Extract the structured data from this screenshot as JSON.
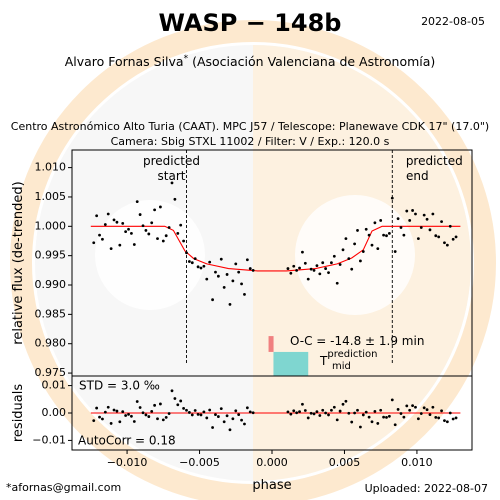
{
  "title": "WASP − 148b",
  "date": "2022-08-05",
  "observer": "Alvaro Fornas Silva",
  "observer_mark": "*",
  "organization": "(Asociación Valenciana de Astronomía)",
  "subtitle_line1": "Centro Astronómico Alto Turia (CAAT). MPC J57 / Telescope: Planewave CDK 17\" (17.0\")",
  "subtitle_line2": "Camera: Sbig STXL 11002 / Filter: V / Exp.: 120.0 s",
  "email": "*afornas@gmail.com",
  "uploaded": "Uploaded: 2022-08-07",
  "colors": {
    "points": "#000000",
    "model": "#ff0000",
    "oc_bar": "#f08080",
    "prediction_box": "#7fd6d0",
    "watermark_disk": "#eeeeee",
    "watermark_ring": "#fde9cf"
  },
  "chart_data": [
    {
      "type": "scatter",
      "panel": "lightcurve",
      "xlabel": "",
      "ylabel": "relative flux (de-trended)",
      "xlim": [
        -0.0138,
        0.0138
      ],
      "ylim": [
        0.9745,
        1.013
      ],
      "yticks": [
        0.975,
        0.98,
        0.985,
        0.99,
        0.995,
        1.0,
        1.005,
        1.01
      ],
      "ytick_labels": [
        "0.975",
        "0.980",
        "0.985",
        "0.990",
        "0.995",
        "1.000",
        "1.005",
        "1.010"
      ],
      "predicted_start": {
        "x": -0.0059,
        "label1": "predicted",
        "label2": "start"
      },
      "predicted_end": {
        "x": 0.0083,
        "label1": "predicted",
        "label2": "end"
      },
      "model": {
        "x": [
          -0.0125,
          -0.0074,
          -0.0068,
          -0.006,
          -0.0054,
          -0.0045,
          -0.003,
          -0.001,
          0.001,
          0.003,
          0.0045,
          0.0055,
          0.0063,
          0.0069,
          0.0076,
          0.013
        ],
        "y": [
          1.0,
          1.0,
          0.9993,
          0.9958,
          0.9945,
          0.9936,
          0.9928,
          0.9924,
          0.9924,
          0.9928,
          0.9936,
          0.9946,
          0.996,
          0.9992,
          1.0,
          1.0
        ]
      },
      "oc_text": "O-C = -14.8 ± 1.9 min",
      "oc_bar": {
        "x": -0.0001,
        "y_range": [
          0.9786,
          0.9813
        ]
      },
      "prediction_label": "T",
      "prediction_sup": "prediction",
      "prediction_sub": "mid",
      "prediction_box": {
        "x_range": [
          0.0001,
          0.0025
        ],
        "y_range": [
          0.9745,
          0.9786
        ]
      },
      "points": {
        "x": [
          -0.0123,
          -0.0121,
          -0.0119,
          -0.0117,
          -0.0115,
          -0.0113,
          -0.0111,
          -0.0109,
          -0.0107,
          -0.0105,
          -0.0103,
          -0.0101,
          -0.0099,
          -0.0097,
          -0.0095,
          -0.0093,
          -0.0091,
          -0.0089,
          -0.0087,
          -0.0085,
          -0.0083,
          -0.0081,
          -0.0079,
          -0.0077,
          -0.0075,
          -0.0073,
          -0.0071,
          -0.0069,
          -0.0067,
          -0.0065,
          -0.0063,
          -0.0061,
          -0.0059,
          -0.0057,
          -0.0055,
          -0.0053,
          -0.0051,
          -0.0049,
          -0.0047,
          -0.0045,
          -0.0043,
          -0.0041,
          -0.0039,
          -0.0037,
          -0.0035,
          -0.0033,
          -0.0031,
          -0.0029,
          -0.0027,
          -0.0025,
          -0.0023,
          -0.0021,
          -0.0019,
          -0.0017,
          -0.0015,
          -0.0013,
          0.0011,
          0.0013,
          0.0015,
          0.0017,
          0.0019,
          0.0021,
          0.0023,
          0.0025,
          0.0027,
          0.0029,
          0.0031,
          0.0033,
          0.0035,
          0.0037,
          0.0039,
          0.0041,
          0.0043,
          0.0045,
          0.0047,
          0.0049,
          0.0051,
          0.0053,
          0.0055,
          0.0057,
          0.0059,
          0.0061,
          0.0063,
          0.0065,
          0.0067,
          0.0069,
          0.0071,
          0.0073,
          0.0075,
          0.0077,
          0.0079,
          0.0081,
          0.0083,
          0.0085,
          0.0087,
          0.0089,
          0.0091,
          0.0093,
          0.0095,
          0.0097,
          0.0099,
          0.0101,
          0.0103,
          0.0105,
          0.0107,
          0.0109,
          0.0111,
          0.0113,
          0.0115,
          0.0117,
          0.0119,
          0.0121,
          0.0123,
          0.0125,
          0.0127
        ],
        "y": [
          0.9972,
          1.0018,
          0.9985,
          0.9978,
          1.0003,
          1.0021,
          0.9962,
          1.0011,
          1.0007,
          0.9968,
          1.0005,
          0.9991,
          0.9995,
          0.9988,
          0.9969,
          1.0042,
          1.002,
          1.0001,
          0.9993,
          0.9987,
          1.0006,
          1.0028,
          0.9979,
          1.0033,
          0.9975,
          0.9984,
          0.9998,
          1.0074,
          1.0046,
          0.9988,
          1.0002,
          0.9975,
          0.9955,
          0.994,
          0.9938,
          0.9945,
          0.9931,
          0.9929,
          0.9932,
          0.991,
          0.9939,
          0.9875,
          0.9922,
          0.9915,
          0.9944,
          0.9896,
          0.9918,
          0.9867,
          0.9907,
          0.9936,
          0.9922,
          0.9902,
          0.9884,
          0.9943,
          0.9928,
          0.9925,
          0.9928,
          0.992,
          0.9932,
          0.9925,
          0.9929,
          0.9956,
          0.9937,
          0.991,
          0.9927,
          0.9925,
          0.9933,
          0.9919,
          0.9938,
          0.9928,
          0.9921,
          0.9938,
          0.9949,
          0.9903,
          0.9935,
          0.996,
          0.9979,
          0.9945,
          0.9927,
          0.997,
          0.9993,
          0.9941,
          0.9957,
          0.9995,
          0.9985,
          0.9968,
          1.0006,
          0.9962,
          1.001,
          0.9985,
          0.9984,
          0.9988,
          1.0048,
          0.9957,
          1.0013,
          0.9998,
          0.9985,
          1.0026,
          1.001,
          1.0027,
          1.0021,
          0.9979,
          0.9998,
          1.0019,
          1.0012,
          0.9994,
          1.0021,
          0.9984,
          0.9982,
          1.0008,
          0.9972,
          0.9968,
          1.0,
          0.9978,
          0.9982
        ]
      }
    },
    {
      "type": "scatter",
      "panel": "residuals",
      "xlabel": "phase",
      "ylabel": "residuals",
      "xlim": [
        -0.0138,
        0.0138
      ],
      "ylim": [
        -0.0135,
        0.0135
      ],
      "xticks": [
        -0.01,
        -0.005,
        0.0,
        0.005,
        0.01
      ],
      "xtick_labels": [
        "−0.010",
        "−0.005",
        "0.000",
        "0.005",
        "0.010"
      ],
      "yticks": [
        -0.01,
        0.0,
        0.01
      ],
      "ytick_labels": [
        "−0.01",
        "0.00",
        "0.01"
      ],
      "std_text": "STD = 3.0 ‰",
      "autocorr_text": "AutoCorr = 0.18",
      "zero_line": 0.0,
      "points": {
        "x": [
          -0.0123,
          -0.0121,
          -0.0119,
          -0.0117,
          -0.0115,
          -0.0113,
          -0.0111,
          -0.0109,
          -0.0107,
          -0.0105,
          -0.0103,
          -0.0101,
          -0.0099,
          -0.0097,
          -0.0095,
          -0.0093,
          -0.0091,
          -0.0089,
          -0.0087,
          -0.0085,
          -0.0083,
          -0.0081,
          -0.0079,
          -0.0077,
          -0.0075,
          -0.0073,
          -0.0071,
          -0.0069,
          -0.0067,
          -0.0065,
          -0.0063,
          -0.0061,
          -0.0059,
          -0.0057,
          -0.0055,
          -0.0053,
          -0.0051,
          -0.0049,
          -0.0047,
          -0.0045,
          -0.0043,
          -0.0041,
          -0.0039,
          -0.0037,
          -0.0035,
          -0.0033,
          -0.0031,
          -0.0029,
          -0.0027,
          -0.0025,
          -0.0023,
          -0.0021,
          -0.0019,
          -0.0017,
          -0.0015,
          -0.0013,
          0.0011,
          0.0013,
          0.0015,
          0.0017,
          0.0019,
          0.0021,
          0.0023,
          0.0025,
          0.0027,
          0.0029,
          0.0031,
          0.0033,
          0.0035,
          0.0037,
          0.0039,
          0.0041,
          0.0043,
          0.0045,
          0.0047,
          0.0049,
          0.0051,
          0.0053,
          0.0055,
          0.0057,
          0.0059,
          0.0061,
          0.0063,
          0.0065,
          0.0067,
          0.0069,
          0.0071,
          0.0073,
          0.0075,
          0.0077,
          0.0079,
          0.0081,
          0.0083,
          0.0085,
          0.0087,
          0.0089,
          0.0091,
          0.0093,
          0.0095,
          0.0097,
          0.0099,
          0.0101,
          0.0103,
          0.0105,
          0.0107,
          0.0109,
          0.0111,
          0.0113,
          0.0115,
          0.0117,
          0.0119,
          0.0121,
          0.0123,
          0.0125,
          0.0127
        ],
        "y": [
          -0.0028,
          0.0018,
          -0.0015,
          -0.0022,
          0.0003,
          0.0021,
          -0.0038,
          0.0011,
          0.0007,
          -0.0032,
          0.0005,
          -0.0009,
          -0.0005,
          -0.0012,
          -0.0031,
          0.0042,
          0.002,
          0.0001,
          -0.0007,
          -0.0013,
          0.0006,
          0.0028,
          -0.0021,
          0.0033,
          -0.0025,
          -0.0016,
          -0.0002,
          0.0081,
          0.0053,
          0.003,
          0.0044,
          0.0017,
          0.001,
          0.0002,
          -0.0007,
          0.0009,
          -0.0005,
          -0.0007,
          0.0004,
          -0.0018,
          0.0011,
          -0.0053,
          -0.0006,
          -0.0013,
          0.0016,
          -0.0032,
          -0.001,
          -0.0061,
          -0.0021,
          0.0008,
          -0.0006,
          -0.0026,
          -0.004,
          0.0019,
          0.0004,
          0.0001,
          0.0004,
          -0.0004,
          0.0008,
          0.0001,
          0.0005,
          0.0032,
          0.0009,
          -0.0018,
          -0.0001,
          -0.0003,
          0.0005,
          -0.0009,
          0.001,
          0.0,
          -0.0007,
          0.001,
          0.0021,
          -0.0025,
          0.0007,
          0.0032,
          0.0043,
          -0.0001,
          -0.0033,
          0.0,
          0.001,
          -0.0051,
          -0.0007,
          0.0003,
          -0.0015,
          -0.0032,
          0.0006,
          -0.0038,
          0.001,
          -0.0015,
          -0.0016,
          -0.0012,
          0.0048,
          -0.0043,
          0.0013,
          -0.0002,
          -0.0015,
          0.0026,
          0.001,
          0.0027,
          0.0021,
          -0.0021,
          -0.0002,
          0.0019,
          0.0012,
          -0.0006,
          0.0021,
          -0.0016,
          -0.0018,
          0.0008,
          -0.0028,
          -0.0032,
          0.0,
          -0.0022,
          -0.0018
        ]
      }
    }
  ]
}
